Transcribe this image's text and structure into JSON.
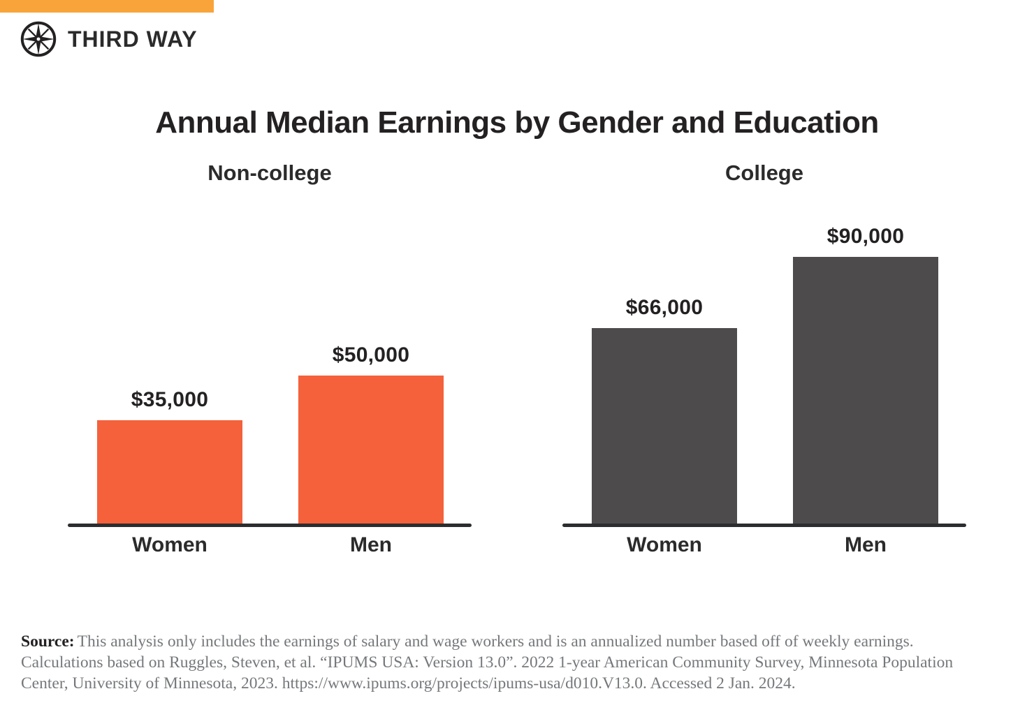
{
  "brand": {
    "name": "THIRD WAY"
  },
  "title": "Annual Median Earnings by Gender and Education",
  "chart_data": [
    {
      "type": "bar",
      "title": "Non-college",
      "categories": [
        "Women",
        "Men"
      ],
      "values": [
        35000,
        50000
      ],
      "value_labels": [
        "$35,000",
        "$50,000"
      ],
      "bar_color": "#F4613B",
      "ylim": [
        0,
        95000
      ],
      "grid": false,
      "legend": "none"
    },
    {
      "type": "bar",
      "title": "College",
      "categories": [
        "Women",
        "Men"
      ],
      "values": [
        66000,
        90000
      ],
      "value_labels": [
        "$66,000",
        "$90,000"
      ],
      "bar_color": "#4D4B4C",
      "ylim": [
        0,
        95000
      ],
      "grid": false,
      "legend": "none"
    }
  ],
  "source": {
    "label": "Source:",
    "text": "This analysis only includes the earnings of salary and wage workers and is an annualized number based off of weekly earnings. Calculations based on Ruggles, Steven, et al. “IPUMS USA: Version 13.0”. 2022 1-year American Community Survey, Minnesota Population Center, University of Minnesota, 2023. ",
    "url": "https://www.ipums.org/projects/ipums-usa/d010.V13.0.",
    "suffix": " Accessed 2 Jan. 2024."
  },
  "colors": {
    "topbar_accent": "#F9A43B",
    "noncollege_bar": "#F4613B",
    "college_bar": "#4D4B4C",
    "axis": "#2B2D2F",
    "text_dark": "#242122",
    "source_gray": "#75787B"
  }
}
